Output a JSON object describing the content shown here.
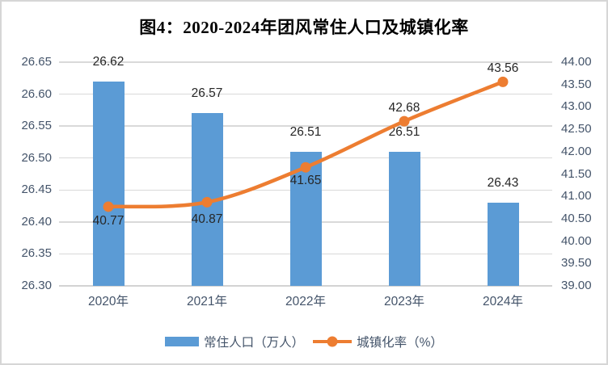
{
  "chart_data": {
    "type": "combo",
    "title": "图4：2020-2024年团风常住人口及城镇化率",
    "categories": [
      "2020年",
      "2021年",
      "2022年",
      "2023年",
      "2024年"
    ],
    "series": [
      {
        "name": "常住人口（万人）",
        "type": "bar",
        "axis": "left",
        "color": "#5B9BD5",
        "values": [
          26.62,
          26.57,
          26.51,
          26.51,
          26.43
        ],
        "labels": [
          "26.62",
          "26.57",
          "26.51",
          "26.51",
          "26.43"
        ]
      },
      {
        "name": "城镇化率（%）",
        "type": "line",
        "axis": "right",
        "color": "#ED7D31",
        "smooth": true,
        "markers": true,
        "values": [
          40.77,
          40.87,
          41.65,
          42.68,
          43.56
        ],
        "labels": [
          "40.77",
          "40.87",
          "41.65",
          "42.68",
          "43.56"
        ],
        "label_positions": [
          "below",
          "below",
          "below",
          "above",
          "above"
        ]
      }
    ],
    "left_axis": {
      "min": 26.3,
      "max": 26.65,
      "step": 0.05,
      "ticks": [
        "26.65",
        "26.60",
        "26.55",
        "26.50",
        "26.45",
        "26.40",
        "26.35",
        "26.30"
      ]
    },
    "right_axis": {
      "min": 39.0,
      "max": 44.0,
      "step": 0.5,
      "ticks": [
        "44.00",
        "43.50",
        "43.00",
        "42.50",
        "42.00",
        "41.50",
        "41.00",
        "40.50",
        "40.00",
        "39.50",
        "39.00"
      ]
    },
    "grid": "horizontal",
    "legend_position": "bottom",
    "colors": {
      "grid": "#D9D9D9",
      "axis_line": "#D3D3D3",
      "axis_text": "#44546A",
      "data_label_text": "#262626",
      "title_text": "#000000"
    }
  },
  "legend": {
    "items": [
      {
        "label": "常住人口（万人）",
        "swatch": "bar-blue"
      },
      {
        "label": "城镇化率（%）",
        "swatch": "line-orange"
      }
    ]
  }
}
